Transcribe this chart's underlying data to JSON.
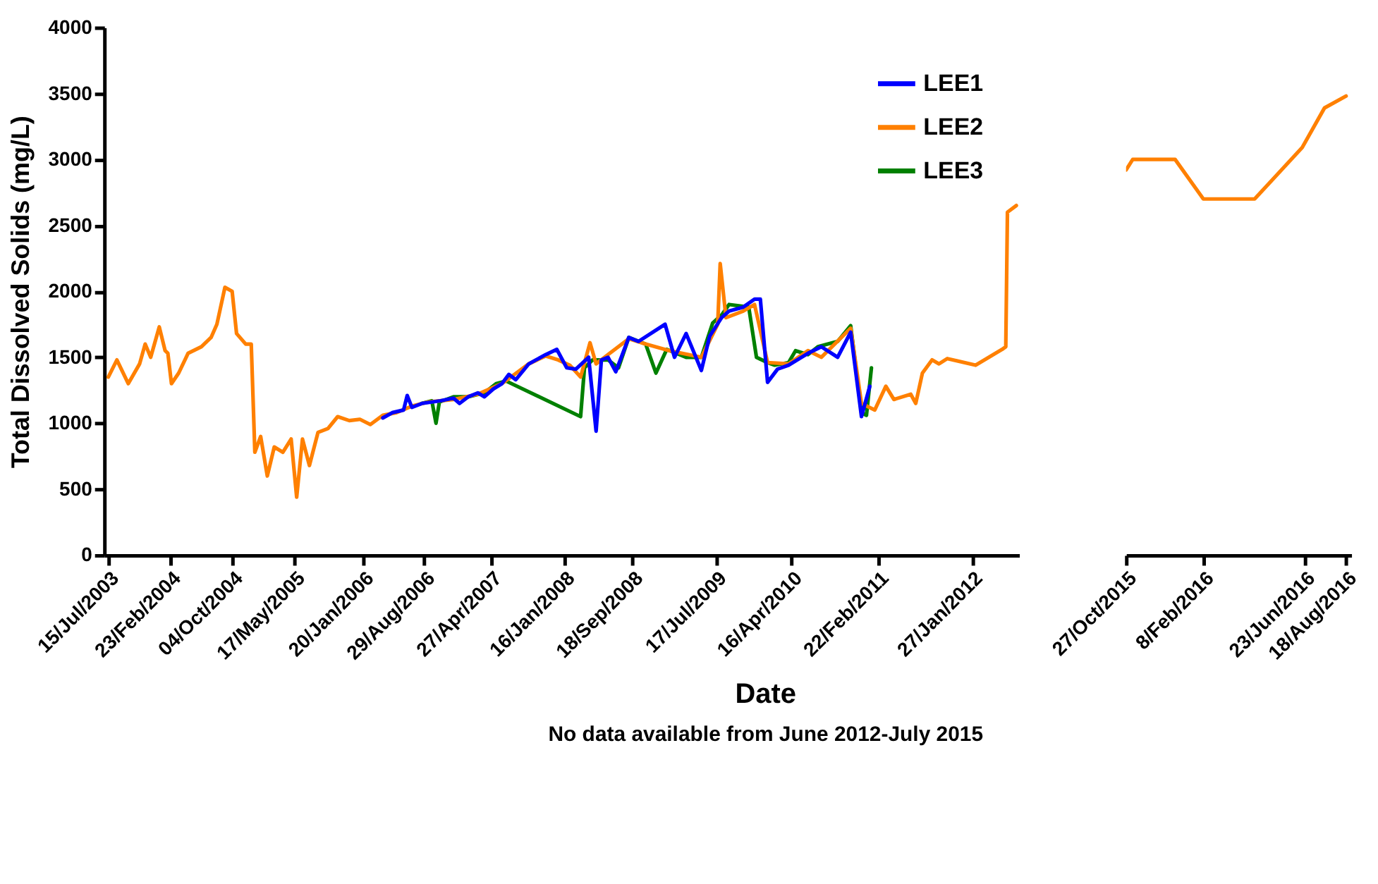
{
  "chart_data": [
    {
      "type": "line",
      "ylabel": "Total Dissolved Solids (mg/L)",
      "xlabel": "Date",
      "annotations": [
        "No data available from June 2012-July 2015"
      ],
      "xlim": [
        "2003-06-30",
        "2012-07-15"
      ],
      "xticks": [
        {
          "value": "2003-07-15",
          "label": "15/Jul/2003"
        },
        {
          "value": "2004-02-23",
          "label": "23/Feb/2004"
        },
        {
          "value": "2004-10-04",
          "label": "04/Oct/2004"
        },
        {
          "value": "2005-05-17",
          "label": "17/May/2005"
        },
        {
          "value": "2006-01-20",
          "label": "20/Jan/2006"
        },
        {
          "value": "2006-08-29",
          "label": "29/Aug/2006"
        },
        {
          "value": "2007-04-27",
          "label": "27/Apr/2007"
        },
        {
          "value": "2008-01-16",
          "label": "16/Jan/2008"
        },
        {
          "value": "2008-09-18",
          "label": "18/Sep/2008"
        },
        {
          "value": "2009-07-17",
          "label": "17/Jul/2009"
        },
        {
          "value": "2010-04-16",
          "label": "16/Apr/2010"
        },
        {
          "value": "2011-02-22",
          "label": "22/Feb/2011"
        },
        {
          "value": "2012-01-27",
          "label": "27/Jan/2012"
        }
      ],
      "ylim": [
        0,
        4000
      ],
      "yticks": [
        0,
        500,
        1000,
        1500,
        2000,
        2500,
        3000,
        3500,
        4000
      ],
      "legend": "top right",
      "series": [
        {
          "name": "LEE1",
          "color": "#0000ff",
          "x": [
            "2006-04-01",
            "2006-05-05",
            "2006-06-15",
            "2006-06-28",
            "2006-07-15",
            "2006-08-20",
            "2006-10-27",
            "2006-12-12",
            "2007-01-03",
            "2007-02-03",
            "2007-03-10",
            "2007-04-03",
            "2007-05-05",
            "2007-06-05",
            "2007-06-30",
            "2007-07-25",
            "2007-09-10",
            "2007-11-10",
            "2007-12-20",
            "2008-01-25",
            "2008-02-27",
            "2008-04-13",
            "2008-05-10",
            "2008-05-29",
            "2008-06-22",
            "2008-07-20",
            "2008-09-05",
            "2008-10-10",
            "2009-01-14",
            "2009-02-17",
            "2009-03-31",
            "2009-05-25",
            "2009-06-24",
            "2009-08-06",
            "2009-09-02",
            "2009-10-23",
            "2009-12-03",
            "2009-12-24",
            "2010-01-19",
            "2010-02-24",
            "2010-04-05",
            "2010-06-14",
            "2010-08-01",
            "2010-09-29",
            "2010-11-15",
            "2010-12-24",
            "2011-01-23"
          ],
          "values": [
            1040,
            1080,
            1100,
            1210,
            1120,
            1150,
            1170,
            1190,
            1150,
            1200,
            1230,
            1200,
            1260,
            1300,
            1370,
            1330,
            1450,
            1520,
            1560,
            1420,
            1410,
            1500,
            940,
            1480,
            1500,
            1390,
            1650,
            1620,
            1750,
            1500,
            1680,
            1400,
            1660,
            1800,
            1850,
            1880,
            1940,
            1940,
            1310,
            1410,
            1440,
            1530,
            1580,
            1500,
            1690,
            1050,
            1280
          ]
        },
        {
          "name": "LEE2",
          "color": "#ff8000",
          "x": [
            "2003-07-15",
            "2003-08-15",
            "2003-09-25",
            "2003-11-05",
            "2003-11-25",
            "2003-12-15",
            "2004-01-15",
            "2004-02-05",
            "2004-02-15",
            "2004-02-28",
            "2004-03-25",
            "2004-04-28",
            "2004-06-15",
            "2004-07-20",
            "2004-08-10",
            "2004-09-08",
            "2004-10-04",
            "2004-10-20",
            "2004-11-22",
            "2004-12-12",
            "2004-12-25",
            "2005-01-15",
            "2005-02-08",
            "2005-03-05",
            "2005-04-05",
            "2005-05-05",
            "2005-05-25",
            "2005-06-15",
            "2005-07-10",
            "2005-08-10",
            "2005-09-15",
            "2005-10-20",
            "2005-12-01",
            "2006-01-08",
            "2006-02-15",
            "2006-04-01",
            "2006-05-20",
            "2006-07-15",
            "2006-09-10",
            "2006-12-12",
            "2007-03-10",
            "2007-06-05",
            "2007-09-10",
            "2007-11-10",
            "2007-12-25",
            "2008-02-05",
            "2008-03-15",
            "2008-04-18",
            "2008-05-10",
            "2008-06-22",
            "2008-09-05",
            "2008-11-05",
            "2009-01-30",
            "2009-05-25",
            "2009-07-23",
            "2009-08-01",
            "2009-08-22",
            "2009-10-23",
            "2009-12-03",
            "2010-01-19",
            "2010-04-05",
            "2010-06-14",
            "2010-08-01",
            "2010-11-15",
            "2010-12-24",
            "2011-02-10",
            "2011-03-22",
            "2011-04-20",
            "2011-06-20",
            "2011-07-08",
            "2011-08-01",
            "2011-09-05",
            "2011-09-30",
            "2011-10-30",
            "2012-02-09",
            "2012-04-13",
            "2012-05-15",
            "2012-05-28",
            "2012-06-03",
            "2012-07-05"
          ],
          "values": [
            1350,
            1480,
            1300,
            1450,
            1600,
            1500,
            1730,
            1550,
            1530,
            1300,
            1380,
            1530,
            1580,
            1650,
            1750,
            2030,
            2000,
            1680,
            1600,
            1600,
            780,
            900,
            600,
            820,
            780,
            880,
            440,
            880,
            680,
            930,
            960,
            1050,
            1020,
            1030,
            990,
            1060,
            1080,
            1130,
            1160,
            1180,
            1220,
            1300,
            1450,
            1510,
            1480,
            1440,
            1350,
            1610,
            1450,
            1520,
            1640,
            1600,
            1550,
            1500,
            1750,
            2210,
            1800,
            1850,
            1900,
            1460,
            1450,
            1550,
            1500,
            1720,
            1150,
            1100,
            1280,
            1180,
            1220,
            1150,
            1380,
            1480,
            1450,
            1490,
            1440,
            1520,
            1560,
            1580,
            2600,
            2650
          ]
        },
        {
          "name": "LEE3",
          "color": "#008000",
          "x": [
            "2006-08-20",
            "2006-09-25",
            "2006-10-10",
            "2006-10-22",
            "2006-12-12",
            "2007-02-03",
            "2007-04-03",
            "2007-05-15",
            "2007-06-20",
            "2008-03-15",
            "2008-03-29",
            "2008-04-27",
            "2008-06-22",
            "2008-07-30",
            "2008-09-05",
            "2008-11-05",
            "2008-12-12",
            "2009-01-20",
            "2009-03-31",
            "2009-05-25",
            "2009-07-05",
            "2009-08-06",
            "2009-09-02",
            "2009-11-12",
            "2009-12-10",
            "2010-01-19",
            "2010-02-14",
            "2010-04-05",
            "2010-04-30",
            "2010-06-14",
            "2010-07-20",
            "2010-09-29",
            "2010-11-15",
            "2010-12-24",
            "2011-01-11",
            "2011-01-29"
          ],
          "values": [
            1150,
            1170,
            1000,
            1160,
            1200,
            1200,
            1230,
            1300,
            1320,
            1050,
            1420,
            1480,
            1480,
            1420,
            1650,
            1600,
            1380,
            1560,
            1500,
            1500,
            1760,
            1820,
            1900,
            1880,
            1500,
            1460,
            1440,
            1460,
            1550,
            1520,
            1580,
            1620,
            1740,
            1080,
            1060,
            1420
          ]
        }
      ]
    },
    {
      "type": "line",
      "xlim": [
        "2015-10-27",
        "2016-08-25"
      ],
      "xticks": [
        {
          "value": "2015-10-27",
          "label": "27/Oct/2015"
        },
        {
          "value": "2016-02-08",
          "label": "8/Feb/2016"
        },
        {
          "value": "2016-06-23",
          "label": "23/Jun/2016"
        },
        {
          "value": "2016-08-18",
          "label": "18/Aug/2016"
        }
      ],
      "ylim": [
        0,
        4000
      ],
      "tick_labels": "x",
      "legend": false,
      "series": [
        {
          "color": "#ff8000",
          "x": [
            "2015-10-27",
            "2015-11-05",
            "2016-01-01",
            "2016-02-08",
            "2016-04-17",
            "2016-06-20",
            "2016-07-20",
            "2016-08-18"
          ],
          "values": [
            2920,
            3000,
            3000,
            2700,
            2700,
            3090,
            3390,
            3480
          ]
        }
      ]
    }
  ]
}
